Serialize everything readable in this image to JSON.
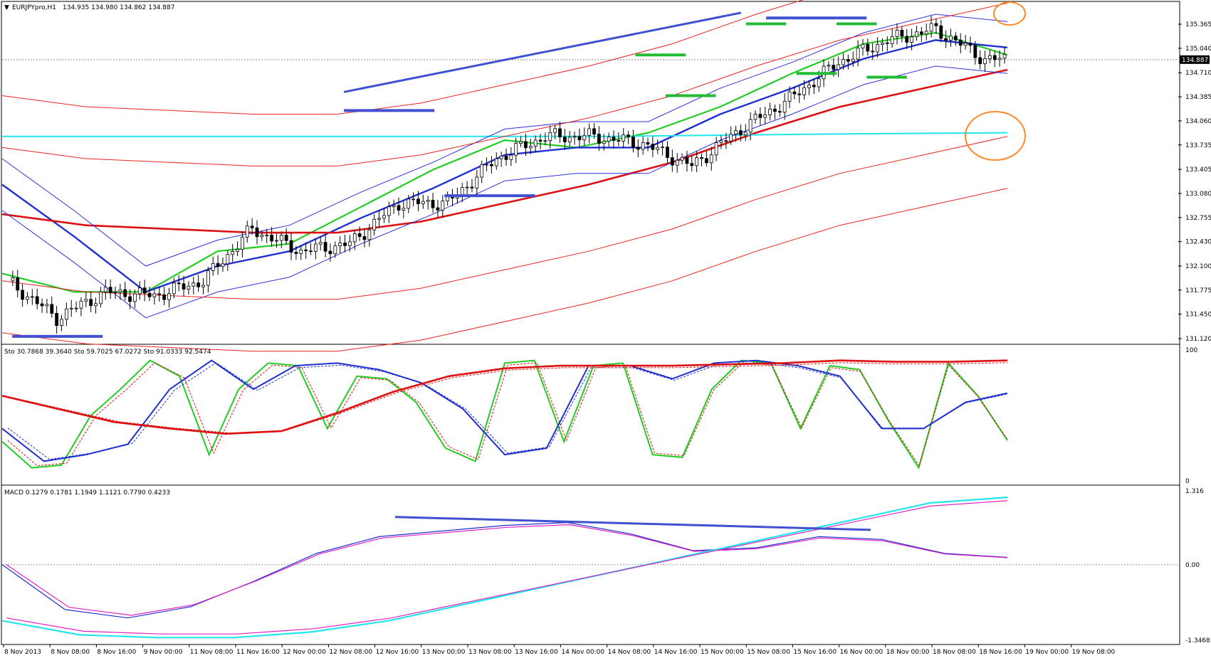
{
  "window": {
    "title": "EURJPYpro,H1",
    "ohlc_text": "134.935 134.980 134.862 134.887"
  },
  "colors": {
    "background": "#ffffff",
    "grid": "#c0c0c0",
    "axis": "#000000",
    "bull_candle": "#ffffff",
    "bear_candle": "#000000",
    "sma_fast": "#22cc22",
    "sma_mid": "#1f2fd0",
    "sma_slow": "#dd1111",
    "bands_blue": "#3030e0",
    "bands_red": "#ee2222",
    "cyan": "#22e5ee",
    "annotation_blue": "#4050d0",
    "annotation_green": "#22bb33",
    "annotation_orange": "#ff8a2a"
  },
  "price_panel": {
    "ticks": [
      "135.365",
      "135.040",
      "134.710",
      "134.385",
      "134.060",
      "133.735",
      "133.405",
      "133.080",
      "132.755",
      "132.430",
      "132.100",
      "131.775",
      "131.450",
      "131.120"
    ],
    "current_price": "134.887"
  },
  "stoch_panel": {
    "label": "Sto 30.7868 39.3640  Sto 59.7025 67.0272  Sto 91.0333 92.5474",
    "ticks": [
      "100",
      "0"
    ]
  },
  "macd_panel": {
    "label": "MACD 0.1279 0.1781 1.1949 1.1121 0.7790 0.4233",
    "ticks": [
      "1.316",
      "0.00",
      "-1.3468"
    ]
  },
  "time_axis": [
    "8 Nov 2013",
    "8 Nov 08:00",
    "8 Nov 16:00",
    "9 Nov 00:00",
    "11 Nov 08:00",
    "11 Nov 16:00",
    "12 Nov 00:00",
    "12 Nov 08:00",
    "12 Nov 16:00",
    "13 Nov 00:00",
    "13 Nov 08:00",
    "13 Nov 16:00",
    "14 Nov 00:00",
    "14 Nov 08:00",
    "14 Nov 16:00",
    "15 Nov 00:00",
    "15 Nov 08:00",
    "15 Nov 16:00",
    "16 Nov 00:00",
    "18 Nov 00:00",
    "18 Nov 08:00",
    "18 Nov 16:00",
    "19 Nov 00:00",
    "19 Nov 08:00"
  ],
  "chart_data": [
    {
      "type": "line",
      "title": "EURJPYpro,H1",
      "symbol": "EURJPYpro",
      "timeframe": "H1",
      "ylim": [
        131.12,
        135.5
      ],
      "candles_key_points": {
        "x_index": [
          0,
          10,
          20,
          30,
          40,
          50,
          60,
          70,
          80,
          90,
          100,
          110,
          120,
          130,
          140,
          150,
          160,
          170,
          180,
          190,
          200
        ],
        "close": [
          131.9,
          131.4,
          131.75,
          131.7,
          131.9,
          132.6,
          132.3,
          132.4,
          132.95,
          132.95,
          133.55,
          133.85,
          133.85,
          133.75,
          133.45,
          133.95,
          134.35,
          134.85,
          135.15,
          135.3,
          134.89
        ]
      },
      "series": [
        {
          "values": [
            132.0,
            131.75,
            131.75,
            132.3,
            132.4,
            132.9,
            133.4,
            133.8,
            133.7,
            133.9,
            134.25,
            134.7,
            135.1,
            135.25,
            134.95
          ]
        },
        {
          "values": [
            133.2,
            132.5,
            131.75,
            132.1,
            132.3,
            132.75,
            133.15,
            133.6,
            133.7,
            133.7,
            134.15,
            134.5,
            134.9,
            135.15,
            135.05
          ]
        },
        {
          "values": [
            132.8,
            132.65,
            132.6,
            132.55,
            132.55,
            132.7,
            132.95,
            133.2,
            133.5,
            133.9,
            134.25,
            134.5,
            134.75
          ]
        },
        {
          "values": [
            133.85,
            133.85,
            133.85,
            133.85,
            133.88,
            133.9
          ]
        }
      ],
      "annotations": {
        "blue_trendline": [
          [
            0.34,
            134.45
          ],
          [
            0.735,
            135.52
          ]
        ],
        "blue_levels": [
          131.15,
          134.2,
          133.05,
          135.45
        ],
        "green_levels": [
          134.95,
          134.4,
          135.37,
          134.7,
          135.37,
          134.65
        ]
      }
    },
    {
      "type": "line",
      "title": "Sto 30.7868 39.3640  Sto 59.7025 67.0272  Sto 91.0333 92.5474",
      "ylim": [
        0,
        100
      ],
      "series": [
        {
          "values": [
            30,
            10,
            12,
            50,
            70,
            92,
            80,
            20,
            70,
            90,
            88,
            40,
            80,
            78,
            60,
            25,
            15,
            90,
            92,
            30,
            88,
            90,
            20,
            18,
            70,
            92,
            90,
            40,
            88,
            85,
            45,
            10,
            90,
            65,
            31
          ]
        },
        {
          "values": [
            40,
            15,
            20,
            28,
            70,
            92,
            70,
            88,
            90,
            85,
            75,
            55,
            20,
            25,
            88,
            88,
            78,
            90,
            92,
            88,
            80,
            40,
            40,
            60,
            67
          ]
        },
        {
          "values": [
            65,
            55,
            45,
            40,
            36,
            38,
            52,
            68,
            80,
            86,
            88,
            88,
            88,
            89,
            90,
            92,
            91,
            91,
            92
          ]
        }
      ]
    },
    {
      "type": "line",
      "title": "MACD 0.1279 0.1781 1.1949 1.1121 0.7790 0.4233",
      "ylim": [
        -1.3468,
        1.316
      ],
      "series": [
        {
          "values": [
            0.0,
            -0.8,
            -0.95,
            -0.75,
            -0.3,
            0.2,
            0.5,
            0.6,
            0.7,
            0.75,
            0.55,
            0.25,
            0.3,
            0.5,
            0.45,
            0.2,
            0.13
          ]
        },
        {
          "values": [
            -1.0,
            -1.25,
            -1.3,
            -1.3,
            -1.2,
            -1.0,
            -0.7,
            -0.4,
            -0.1,
            0.2,
            0.5,
            0.8,
            1.1,
            1.2
          ]
        }
      ]
    }
  ]
}
